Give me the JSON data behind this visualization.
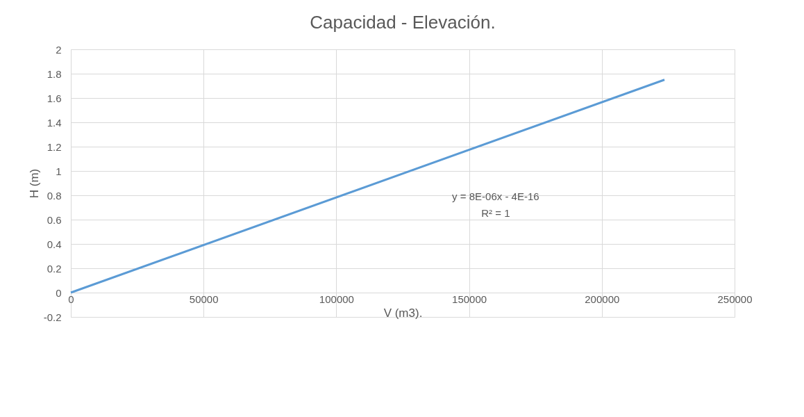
{
  "chart_data": {
    "type": "line",
    "title": "Capacidad - Elevación.",
    "xlabel": "V (m3).",
    "ylabel": "H (m)",
    "x": [
      0,
      223600
    ],
    "series": [
      {
        "color": "#5b9bd5",
        "values": [
          0,
          1.75
        ]
      }
    ],
    "xlim": [
      0,
      250000
    ],
    "xticks": [
      0,
      50000,
      100000,
      150000,
      200000,
      250000
    ],
    "ylim": [
      -0.2,
      2
    ],
    "yticks": [
      -0.2,
      0,
      0.2,
      0.4,
      0.6,
      0.8,
      1,
      1.2,
      1.4,
      1.6,
      1.8,
      2
    ],
    "grid": true,
    "marker": "none",
    "line_style": "solid",
    "annotations": [
      "y = 8E-06x - 4E-16",
      "R² = 1"
    ]
  }
}
